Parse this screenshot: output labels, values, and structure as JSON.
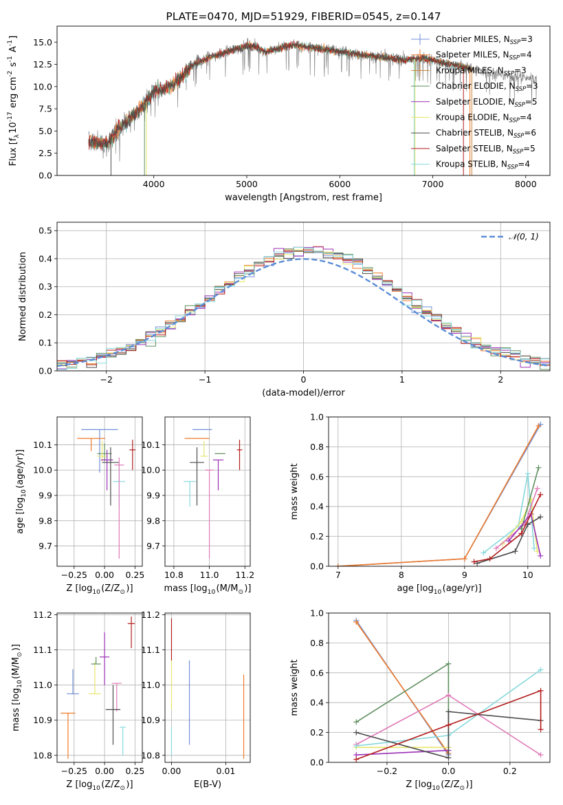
{
  "colors": {
    "Chabrier MILES": "#6f8fd8",
    "Salpeter MILES": "#f07a2a",
    "Kroupa MILES": "#c8843c",
    "Chabrier ELODIE": "#5f8f5f",
    "Salpeter ELODIE": "#9a2fb4",
    "Kroupa ELODIE": "#e6e66a",
    "Chabrier STELIB": "#4a4a4a",
    "Salpeter STELIB": "#b21a1a",
    "Kroupa STELIB": "#86d8dc",
    "pink": "#e07ab8",
    "normal": "#5b8cd6"
  },
  "chart_data": [
    {
      "id": "spectrum",
      "type": "line",
      "title": "PLATE=0470, MJD=51929, FIBERID=0545, z=0.147",
      "xlabel": "wavelength [Angstrom, rest frame]",
      "ylabel": "Flux [f$_λ$10$^{-17}$ erg cm$^{-2}$ s$^{-1}$ A$^{-1}$]",
      "xlim": [
        2960,
        8260
      ],
      "ylim": [
        0,
        16.8
      ],
      "xticks": [
        "4000",
        "5000",
        "6000",
        "7000",
        "8000"
      ],
      "yticks": [
        "0.0",
        "2.5",
        "5.0",
        "7.5",
        "10.0",
        "12.5",
        "15.0"
      ],
      "legend_position": "right",
      "legend": [
        {
          "base": "Chabrier MILES, N",
          "sub": "SSP",
          "tail": "=3"
        },
        {
          "base": "Salpeter MILES, N",
          "sub": "SSP",
          "tail": "=4"
        },
        {
          "base": "Kroupa MILES, N",
          "sub": "SSP",
          "tail": "=3"
        },
        {
          "base": "Chabrier ELODIE, N",
          "sub": "SSP",
          "tail": "=3"
        },
        {
          "base": "Salpeter ELODIE, N",
          "sub": "SSP",
          "tail": "=5"
        },
        {
          "base": "Kroupa ELODIE, N",
          "sub": "SSP",
          "tail": "=4"
        },
        {
          "base": "Chabrier STELIB, N",
          "sub": "SSP",
          "tail": "=6"
        },
        {
          "base": "Salpeter STELIB, N",
          "sub": "SSP",
          "tail": "=5"
        },
        {
          "base": "Kroupa STELIB, N",
          "sub": "SSP",
          "tail": "=4"
        }
      ],
      "continuum_points": [
        [
          3300,
          3.8
        ],
        [
          3500,
          3.5
        ],
        [
          3600,
          5.0
        ],
        [
          3700,
          6.0
        ],
        [
          3800,
          7.0
        ],
        [
          3900,
          8.0
        ],
        [
          4000,
          9.5
        ],
        [
          4100,
          9.8
        ],
        [
          4200,
          10.2
        ],
        [
          4300,
          11.0
        ],
        [
          4400,
          12.3
        ],
        [
          4500,
          12.8
        ],
        [
          4600,
          13.3
        ],
        [
          4700,
          13.6
        ],
        [
          4800,
          13.9
        ],
        [
          4900,
          14.3
        ],
        [
          5000,
          14.6
        ],
        [
          5100,
          14.5
        ],
        [
          5200,
          13.9
        ],
        [
          5300,
          14.2
        ],
        [
          5400,
          14.5
        ],
        [
          5500,
          14.7
        ],
        [
          5600,
          14.5
        ],
        [
          5700,
          14.4
        ],
        [
          5800,
          14.2
        ],
        [
          5900,
          14.1
        ],
        [
          6000,
          14.0
        ],
        [
          6100,
          13.8
        ],
        [
          6200,
          13.6
        ],
        [
          6300,
          13.5
        ],
        [
          6400,
          13.4
        ],
        [
          6500,
          13.3
        ],
        [
          6600,
          13.1
        ],
        [
          6700,
          13.0
        ],
        [
          6800,
          13.1
        ],
        [
          6900,
          13.2
        ],
        [
          7000,
          13.0
        ],
        [
          7100,
          12.7
        ],
        [
          7200,
          12.5
        ],
        [
          7300,
          12.3
        ],
        [
          7400,
          12.0
        ],
        [
          7500,
          11.8
        ],
        [
          7600,
          11.6
        ],
        [
          7700,
          11.4
        ],
        [
          7800,
          11.2
        ],
        [
          7900,
          11.1
        ],
        [
          8000,
          11.0
        ],
        [
          8100,
          10.9
        ]
      ],
      "data_range": [
        3300,
        8120
      ],
      "model_range": [
        3300,
        7420
      ]
    },
    {
      "id": "residuals",
      "type": "histogram",
      "xlabel": "(data-model)/error",
      "ylabel": "Normed distribution",
      "xlim": [
        -2.5,
        2.5
      ],
      "ylim": [
        0,
        0.53
      ],
      "xticks": [
        "−2",
        "−1",
        "0",
        "1",
        "2"
      ],
      "yticks": [
        "0.0",
        "0.1",
        "0.2",
        "0.3",
        "0.4",
        "0.5"
      ],
      "grid": true,
      "bin_width": 0.1,
      "legend_position": "top-right",
      "legend": [
        {
          "label": "𝒩(0, 1)"
        }
      ]
    },
    {
      "id": "age-vs-Z",
      "type": "errorbar",
      "xlabel": "Z [log$_{10}$(Z/Z$_⊙$)]",
      "ylabel": "age  [log$_{10}$(age/yr)]",
      "xlim": [
        -0.39,
        0.31
      ],
      "ylim": [
        9.62,
        10.21
      ],
      "xticks": [
        -0.25,
        0.0,
        0.25
      ],
      "yticks": [
        9.7,
        9.8,
        9.9,
        10.0,
        10.1
      ],
      "grid": true,
      "points": [
        {
          "series": "Chabrier MILES",
          "x": -0.04,
          "y": 10.16,
          "xerr": 0.3,
          "yerr_lo": 0.17,
          "yerr_hi": 0.0
        },
        {
          "series": "Salpeter MILES",
          "x": -0.11,
          "y": 10.125,
          "xerr": 0.23,
          "yerr_lo": 0.05,
          "yerr_hi": 0.0
        },
        {
          "series": "Chabrier ELODIE",
          "x": 0.0,
          "y": 10.065,
          "xerr": 0.12,
          "yerr_lo": 0.03,
          "yerr_hi": 0.04
        },
        {
          "series": "Kroupa ELODIE",
          "x": -0.02,
          "y": 10.055,
          "xerr": 0.08,
          "yerr_lo": 0.02,
          "yerr_hi": 0.06
        },
        {
          "series": "Salpeter ELODIE",
          "x": 0.02,
          "y": 10.04,
          "xerr": 0.1,
          "yerr_lo": 0.12,
          "yerr_hi": 0.04
        },
        {
          "series": "Chabrier STELIB",
          "x": 0.05,
          "y": 10.03,
          "xerr": 0.14,
          "yerr_lo": 0.17,
          "yerr_hi": 0.06
        },
        {
          "series": "Salpeter STELIB",
          "x": 0.23,
          "y": 10.08,
          "xerr": 0.05,
          "yerr_lo": 0.08,
          "yerr_hi": 0.04
        },
        {
          "series": "Kroupa STELIB",
          "x": 0.12,
          "y": 9.955,
          "xerr": 0.1,
          "yerr_lo": 0.1,
          "yerr_hi": 0.07
        },
        {
          "series": "pink",
          "x": 0.12,
          "y": 10.02,
          "xerr": 0.08,
          "yerr_lo": 0.37,
          "yerr_hi": 0.03
        }
      ]
    },
    {
      "id": "age-vs-mass",
      "type": "errorbar",
      "xlabel": "mass [log$_{10}$(M/M$_⊙$)]",
      "ylabel": "",
      "xlim": [
        10.75,
        11.23
      ],
      "ylim": [
        9.62,
        10.21
      ],
      "xticks": [
        10.8,
        11.0,
        11.2
      ],
      "yticks": [
        9.7,
        9.8,
        9.9,
        10.0,
        10.1
      ],
      "grid": true,
      "points": [
        {
          "series": "Chabrier MILES",
          "x": 10.96,
          "y": 10.16,
          "xerr": 0.11,
          "yerr_lo": 0.0,
          "yerr_hi": 0.0
        },
        {
          "series": "Salpeter MILES",
          "x": 10.93,
          "y": 10.125,
          "xerr": 0.14,
          "yerr_lo": 0.0,
          "yerr_hi": 0.0
        },
        {
          "series": "Kroupa ELODIE",
          "x": 10.97,
          "y": 10.055,
          "xerr": 0.04,
          "yerr_lo": 0.0,
          "yerr_hi": 0.06
        },
        {
          "series": "Chabrier ELODIE",
          "x": 11.06,
          "y": 10.065,
          "xerr": 0.06,
          "yerr_lo": 0.0,
          "yerr_hi": 0.0
        },
        {
          "series": "Salpeter ELODIE",
          "x": 11.05,
          "y": 10.04,
          "xerr": 0.06,
          "yerr_lo": 0.12,
          "yerr_hi": 0.0
        },
        {
          "series": "Chabrier STELIB",
          "x": 10.93,
          "y": 10.03,
          "xerr": 0.08,
          "yerr_lo": 0.17,
          "yerr_hi": 0.06
        },
        {
          "series": "Salpeter STELIB",
          "x": 11.17,
          "y": 10.08,
          "xerr": 0.03,
          "yerr_lo": 0.08,
          "yerr_hi": 0.04
        },
        {
          "series": "Kroupa STELIB",
          "x": 10.89,
          "y": 9.955,
          "xerr": 0.07,
          "yerr_lo": 0.1,
          "yerr_hi": 0.0
        },
        {
          "series": "pink",
          "x": 11.0,
          "y": 10.0,
          "xerr": 0.05,
          "yerr_lo": 0.35,
          "yerr_hi": 0.0
        }
      ]
    },
    {
      "id": "weight-vs-age",
      "type": "line",
      "xlabel": "age  [log$_{10}$(age/yr)]",
      "ylabel": "mass weight",
      "xlim": [
        6.85,
        10.35
      ],
      "ylim": [
        0,
        1.0
      ],
      "xticks": [
        7,
        8,
        9,
        10
      ],
      "yticks": [
        0.0,
        0.2,
        0.4,
        0.6,
        0.8,
        1.0
      ],
      "grid": true,
      "series": [
        {
          "name": "Chabrier MILES",
          "points": [
            [
              7.0,
              0.0
            ],
            [
              9.0,
              0.05
            ],
            [
              10.2,
              0.95
            ]
          ]
        },
        {
          "name": "Salpeter MILES",
          "points": [
            [
              7.0,
              0.0
            ],
            [
              9.0,
              0.05
            ],
            [
              10.17,
              0.94
            ]
          ]
        },
        {
          "name": "Kroupa STELIB",
          "points": [
            [
              9.3,
              0.09
            ],
            [
              9.85,
              0.27
            ],
            [
              10.0,
              0.62
            ],
            [
              10.1,
              0.12
            ]
          ]
        },
        {
          "name": "Kroupa ELODIE",
          "points": [
            [
              9.6,
              0.15
            ],
            [
              9.9,
              0.3
            ],
            [
              10.05,
              0.45
            ],
            [
              10.15,
              0.1
            ]
          ]
        },
        {
          "name": "pink",
          "points": [
            [
              9.5,
              0.12
            ],
            [
              9.95,
              0.28
            ],
            [
              10.15,
              0.52
            ]
          ]
        },
        {
          "name": "Chabrier ELODIE",
          "points": [
            [
              9.9,
              0.25
            ],
            [
              10.17,
              0.66
            ]
          ]
        },
        {
          "name": "Salpeter ELODIE",
          "points": [
            [
              9.7,
              0.17
            ],
            [
              10.05,
              0.35
            ],
            [
              10.2,
              0.07
            ]
          ]
        },
        {
          "name": "Chabrier STELIB",
          "points": [
            [
              9.2,
              0.02
            ],
            [
              9.8,
              0.1
            ],
            [
              10.0,
              0.28
            ],
            [
              10.2,
              0.33
            ]
          ]
        },
        {
          "name": "Salpeter STELIB",
          "points": [
            [
              9.15,
              0.03
            ],
            [
              9.4,
              0.05
            ],
            [
              9.9,
              0.22
            ],
            [
              10.2,
              0.48
            ]
          ]
        }
      ]
    },
    {
      "id": "mass-vs-Z",
      "type": "errorbar",
      "xlabel": "Z [log$_{10}$(Z/Z$_⊙$)]",
      "ylabel": "mass [log$_{10}$(M/M$_⊙$)]",
      "xlim": [
        -0.39,
        0.31
      ],
      "ylim": [
        10.78,
        11.205
      ],
      "xticks": [
        -0.25,
        0.0,
        0.25
      ],
      "yticks": [
        10.8,
        10.9,
        11.0,
        11.1,
        11.2
      ],
      "grid": true,
      "points": [
        {
          "series": "Salpeter MILES",
          "x": -0.3,
          "y": 10.92,
          "xerr": 0.12,
          "yerr_lo": 0.13,
          "yerr_hi": 0.0
        },
        {
          "series": "Chabrier MILES",
          "x": -0.26,
          "y": 10.975,
          "xerr": 0.1,
          "yerr_lo": 0.0,
          "yerr_hi": 0.07
        },
        {
          "series": "Kroupa ELODIE",
          "x": -0.08,
          "y": 10.975,
          "xerr": 0.1,
          "yerr_lo": 0.0,
          "yerr_hi": 0.09
        },
        {
          "series": "Chabrier ELODIE",
          "x": -0.07,
          "y": 11.06,
          "xerr": 0.08,
          "yerr_lo": 0.0,
          "yerr_hi": 0.02
        },
        {
          "series": "Salpeter ELODIE",
          "x": 0.0,
          "y": 11.08,
          "xerr": 0.08,
          "yerr_lo": 0.08,
          "yerr_hi": 0.07
        },
        {
          "series": "pink",
          "x": 0.1,
          "y": 11.005,
          "xerr": 0.08,
          "yerr_lo": 0.08,
          "yerr_hi": 0.0
        },
        {
          "series": "Chabrier STELIB",
          "x": 0.07,
          "y": 10.93,
          "xerr": 0.12,
          "yerr_lo": 0.1,
          "yerr_hi": 0.07
        },
        {
          "series": "Kroupa STELIB",
          "x": 0.15,
          "y": 10.88,
          "xerr": 0.05,
          "yerr_lo": 0.08,
          "yerr_hi": 0.0
        },
        {
          "series": "Salpeter STELIB",
          "x": 0.22,
          "y": 11.175,
          "xerr": 0.06,
          "yerr_lo": 0.07,
          "yerr_hi": 0.02
        }
      ]
    },
    {
      "id": "mass-vs-EBV",
      "type": "errorbar",
      "xlabel": "E(B-V)",
      "ylabel": "",
      "xlim": [
        -0.0012,
        0.0145
      ],
      "ylim": [
        10.78,
        11.205
      ],
      "xticks": [
        "0.00",
        "0.01"
      ],
      "xtick_values": [
        0.0,
        0.01
      ],
      "yticks": [
        10.8,
        10.9,
        11.0,
        11.1,
        11.2
      ],
      "grid": true,
      "points": [
        {
          "series": "Salpeter STELIB",
          "x": 0.0,
          "y": 11.12,
          "xerr": 0.0,
          "yerr_lo": 0.05,
          "yerr_hi": 0.07
        },
        {
          "series": "Kroupa ELODIE",
          "x": 0.0,
          "y": 11.0,
          "xerr": 0.0,
          "yerr_lo": 0.07,
          "yerr_hi": 0.07
        },
        {
          "series": "Kroupa STELIB",
          "x": 0.0,
          "y": 10.88,
          "xerr": 0.0,
          "yerr_lo": 0.08,
          "yerr_hi": 0.0
        },
        {
          "series": "Chabrier MILES",
          "x": 0.0033,
          "y": 10.95,
          "xerr": 0.0,
          "yerr_lo": 0.12,
          "yerr_hi": 0.12
        },
        {
          "series": "Salpeter MILES",
          "x": 0.0133,
          "y": 10.91,
          "xerr": 0.0,
          "yerr_lo": 0.12,
          "yerr_hi": 0.12
        }
      ]
    },
    {
      "id": "weight-vs-Z",
      "type": "line",
      "xlabel": "Z [log$_{10}$(Z/Z$_⊙$)]",
      "ylabel": "mass weight",
      "xlim": [
        -0.39,
        0.33
      ],
      "ylim": [
        0,
        1.0
      ],
      "xticks": [
        "−0.2",
        "0.0",
        "0.2"
      ],
      "xtick_values": [
        -0.2,
        0.0,
        0.2
      ],
      "yticks": [
        0.0,
        0.2,
        0.4,
        0.6,
        0.8,
        1.0
      ],
      "grid": true,
      "series": [
        {
          "name": "Chabrier MILES",
          "points": [
            [
              -0.3,
              0.95
            ],
            [
              0.0,
              0.05
            ]
          ]
        },
        {
          "name": "Salpeter MILES",
          "points": [
            [
              -0.3,
              0.94
            ],
            [
              0.0,
              0.06
            ]
          ]
        },
        {
          "name": "Chabrier ELODIE",
          "points": [
            [
              -0.3,
              0.27
            ],
            [
              0.0,
              0.66
            ],
            [
              0.0,
              0.1
            ]
          ]
        },
        {
          "name": "Salpeter ELODIE",
          "points": [
            [
              -0.3,
              0.05
            ],
            [
              0.0,
              0.08
            ]
          ]
        },
        {
          "name": "Kroupa ELODIE",
          "points": [
            [
              -0.3,
              0.1
            ],
            [
              0.0,
              0.1
            ]
          ]
        },
        {
          "name": "pink",
          "points": [
            [
              -0.3,
              0.12
            ],
            [
              0.0,
              0.45
            ],
            [
              0.3,
              0.05
            ]
          ]
        },
        {
          "name": "Kroupa STELIB",
          "points": [
            [
              -0.3,
              0.11
            ],
            [
              0.0,
              0.18
            ],
            [
              0.3,
              0.62
            ]
          ]
        },
        {
          "name": "Chabrier STELIB",
          "points": [
            [
              -0.3,
              0.2
            ],
            [
              0.0,
              0.03
            ],
            [
              0.0,
              0.34
            ],
            [
              0.3,
              0.28
            ]
          ]
        },
        {
          "name": "Salpeter STELIB",
          "points": [
            [
              -0.3,
              0.02
            ],
            [
              0.0,
              0.25
            ],
            [
              0.3,
              0.48
            ],
            [
              0.3,
              0.22
            ]
          ]
        }
      ]
    }
  ]
}
